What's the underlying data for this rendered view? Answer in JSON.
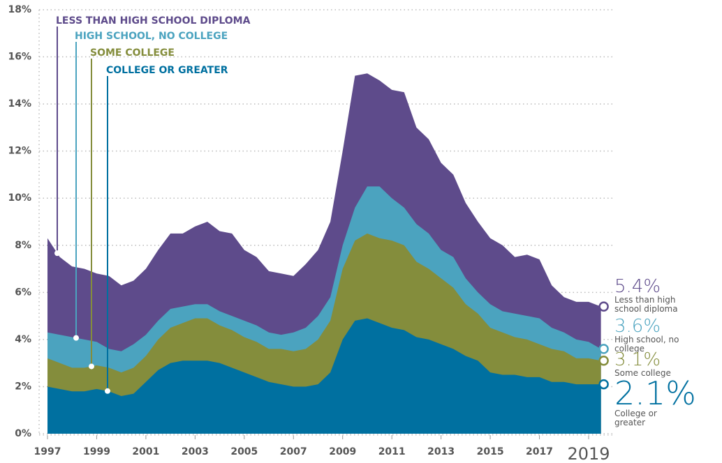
{
  "chart_data": {
    "type": "area",
    "x": [
      1997,
      1997.5,
      1998,
      1998.5,
      1999,
      1999.5,
      2000,
      2000.5,
      2001,
      2001.5,
      2002,
      2002.5,
      2003,
      2003.5,
      2004,
      2004.5,
      2005,
      2005.5,
      2006,
      2006.5,
      2007,
      2007.5,
      2008,
      2008.5,
      2009,
      2009.5,
      2010,
      2010.5,
      2011,
      2011.5,
      2012,
      2012.5,
      2013,
      2013.5,
      2014,
      2014.5,
      2015,
      2015.5,
      2016,
      2016.5,
      2017,
      2017.5,
      2018,
      2018.5,
      2019,
      2019.5
    ],
    "series": [
      {
        "name": "LESS THAN HIGH SCHOOL DIPLOMA",
        "end_name": "Less than high school diploma",
        "end_label": "5.4%",
        "color": "#5e4b8b",
        "values": [
          8.3,
          7.5,
          7.1,
          7.0,
          6.8,
          6.7,
          6.3,
          6.5,
          7.0,
          7.8,
          8.5,
          8.5,
          8.8,
          9.0,
          8.6,
          8.5,
          7.8,
          7.5,
          6.9,
          6.8,
          6.7,
          7.2,
          7.8,
          9.0,
          12.0,
          15.2,
          15.3,
          15.0,
          14.6,
          14.5,
          13.0,
          12.5,
          11.5,
          11.0,
          9.8,
          9.0,
          8.3,
          8.0,
          7.5,
          7.6,
          7.4,
          6.3,
          5.8,
          5.6,
          5.6,
          5.4
        ]
      },
      {
        "name": "HIGH SCHOOL, NO COLLEGE",
        "end_name": "High school, no college",
        "end_label": "3.6%",
        "color": "#4ba3bf",
        "values": [
          4.3,
          4.2,
          4.1,
          4.0,
          3.9,
          3.6,
          3.5,
          3.8,
          4.2,
          4.8,
          5.3,
          5.4,
          5.5,
          5.5,
          5.2,
          5.0,
          4.8,
          4.6,
          4.3,
          4.2,
          4.3,
          4.5,
          5.0,
          5.8,
          8.0,
          9.6,
          10.5,
          10.5,
          10.0,
          9.6,
          8.9,
          8.5,
          7.8,
          7.5,
          6.6,
          6.0,
          5.5,
          5.2,
          5.1,
          5.0,
          4.9,
          4.5,
          4.3,
          4.0,
          3.9,
          3.6
        ]
      },
      {
        "name": "SOME COLLEGE",
        "end_name": "Some college",
        "end_label": "3.1%",
        "color": "#848d3c",
        "values": [
          3.2,
          3.0,
          2.8,
          2.8,
          2.9,
          2.8,
          2.6,
          2.8,
          3.3,
          4.0,
          4.5,
          4.7,
          4.9,
          4.9,
          4.6,
          4.4,
          4.1,
          3.9,
          3.6,
          3.6,
          3.5,
          3.6,
          4.0,
          4.8,
          7.0,
          8.2,
          8.5,
          8.3,
          8.2,
          8.0,
          7.3,
          7.0,
          6.6,
          6.2,
          5.5,
          5.1,
          4.5,
          4.3,
          4.1,
          4.0,
          3.8,
          3.6,
          3.5,
          3.2,
          3.2,
          3.1
        ]
      },
      {
        "name": "COLLEGE OR GREATER",
        "end_name": "College or greater",
        "end_label": "2.1%",
        "color": "#0070a0",
        "values": [
          2.0,
          1.9,
          1.8,
          1.8,
          1.9,
          1.8,
          1.6,
          1.7,
          2.2,
          2.7,
          3.0,
          3.1,
          3.1,
          3.1,
          3.0,
          2.8,
          2.6,
          2.4,
          2.2,
          2.1,
          2.0,
          2.0,
          2.1,
          2.6,
          4.0,
          4.8,
          4.9,
          4.7,
          4.5,
          4.4,
          4.1,
          4.0,
          3.8,
          3.6,
          3.3,
          3.1,
          2.6,
          2.5,
          2.5,
          2.4,
          2.4,
          2.2,
          2.2,
          2.1,
          2.1,
          2.1
        ]
      }
    ],
    "xlim": [
      1997,
      2019
    ],
    "xticks": [
      1997,
      1999,
      2001,
      2003,
      2005,
      2007,
      2009,
      2011,
      2013,
      2015,
      2017,
      2019
    ],
    "ylim": [
      0,
      18
    ],
    "yticks": [
      {
        "value": 0,
        "label": "0%"
      },
      {
        "value": 2,
        "label": "2%"
      },
      {
        "value": 4,
        "label": "4%"
      },
      {
        "value": 6,
        "label": "6%"
      },
      {
        "value": 8,
        "label": "8%"
      },
      {
        "value": 10,
        "label": "10%"
      },
      {
        "value": 12,
        "label": "12%"
      },
      {
        "value": 14,
        "label": "14%"
      },
      {
        "value": 16,
        "label": "16%"
      },
      {
        "value": 18,
        "label": "18%"
      }
    ],
    "grid": true
  }
}
